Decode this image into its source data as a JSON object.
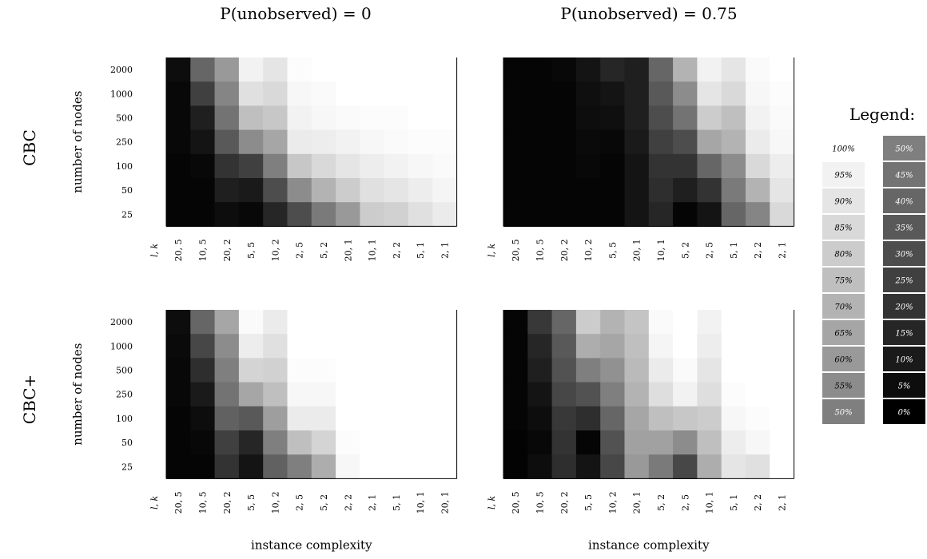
{
  "legend": {
    "title": "Legend:",
    "col1": [
      "100%",
      "95%",
      "90%",
      "85%",
      "80%",
      "75%",
      "70%",
      "65%",
      "60%",
      "55%",
      "50%"
    ],
    "col2": [
      "50%",
      "45%",
      "40%",
      "35%",
      "30%",
      "25%",
      "20%",
      "15%",
      "10%",
      "5%",
      "0%"
    ]
  },
  "chart_data": [
    {
      "type": "heatmap",
      "title": "P(unobserved) = 0",
      "row_label": "CBC",
      "ylabel": "number of nodes",
      "xlabel": "",
      "x_axis_name": "l, k",
      "x": [
        "20, 5",
        "10, 5",
        "20, 2",
        "5, 5",
        "10, 2",
        "2, 5",
        "5, 2",
        "20, 1",
        "10, 1",
        "2, 2",
        "5, 1",
        "2, 1"
      ],
      "y": [
        "2000",
        "1000",
        "500",
        "250",
        "100",
        "50",
        "25"
      ],
      "values": [
        [
          5,
          40,
          60,
          95,
          90,
          99,
          100,
          100,
          100,
          100,
          100,
          100
        ],
        [
          3,
          25,
          52,
          88,
          85,
          97,
          98,
          100,
          100,
          100,
          100,
          100
        ],
        [
          3,
          12,
          45,
          75,
          78,
          95,
          97,
          98,
          99,
          99,
          100,
          100
        ],
        [
          3,
          8,
          35,
          55,
          65,
          92,
          93,
          95,
          97,
          98,
          99,
          99
        ],
        [
          2,
          3,
          20,
          25,
          50,
          78,
          85,
          90,
          93,
          95,
          97,
          98
        ],
        [
          2,
          2,
          12,
          10,
          30,
          55,
          70,
          80,
          88,
          90,
          93,
          96
        ],
        [
          2,
          2,
          5,
          3,
          15,
          30,
          48,
          60,
          80,
          82,
          88,
          92
        ]
      ]
    },
    {
      "type": "heatmap",
      "title": "P(unobserved) = 0.75",
      "row_label": "CBC",
      "ylabel": "",
      "xlabel": "",
      "x_axis_name": "l, k",
      "x": [
        "20, 5",
        "10, 5",
        "20, 2",
        "10, 2",
        "5, 5",
        "20, 1",
        "10, 1",
        "5, 2",
        "2, 5",
        "5, 1",
        "2, 2",
        "2, 1"
      ],
      "y": [
        "2000",
        "1000",
        "500",
        "250",
        "100",
        "50",
        "25"
      ],
      "values": [
        [
          2,
          2,
          3,
          8,
          15,
          12,
          40,
          70,
          95,
          90,
          98,
          100
        ],
        [
          2,
          2,
          2,
          6,
          8,
          12,
          35,
          55,
          90,
          85,
          97,
          99
        ],
        [
          2,
          2,
          2,
          5,
          6,
          12,
          30,
          45,
          80,
          75,
          95,
          98
        ],
        [
          2,
          2,
          2,
          4,
          3,
          10,
          25,
          30,
          65,
          70,
          92,
          97
        ],
        [
          2,
          2,
          2,
          3,
          2,
          8,
          20,
          20,
          40,
          55,
          85,
          93
        ],
        [
          2,
          2,
          2,
          2,
          2,
          8,
          18,
          12,
          20,
          48,
          70,
          90
        ],
        [
          2,
          2,
          2,
          2,
          2,
          8,
          15,
          2,
          8,
          40,
          52,
          85
        ]
      ]
    },
    {
      "type": "heatmap",
      "title": "",
      "row_label": "CBC+",
      "ylabel": "number of nodes",
      "xlabel": "instance complexity",
      "x_axis_name": "l, k",
      "x": [
        "20, 5",
        "10, 5",
        "20, 2",
        "5, 5",
        "10, 2",
        "2, 5",
        "5, 2",
        "2, 2",
        "2, 1",
        "5, 1",
        "10, 1",
        "20, 1"
      ],
      "y": [
        "2000",
        "1000",
        "500",
        "250",
        "100",
        "50",
        "25"
      ],
      "values": [
        [
          5,
          40,
          65,
          98,
          92,
          100,
          100,
          100,
          100,
          100,
          100,
          100
        ],
        [
          4,
          28,
          55,
          93,
          88,
          100,
          100,
          100,
          100,
          100,
          100,
          100
        ],
        [
          3,
          18,
          50,
          83,
          82,
          99,
          99,
          100,
          100,
          100,
          100,
          100
        ],
        [
          3,
          10,
          45,
          65,
          75,
          97,
          97,
          100,
          100,
          100,
          100,
          100
        ],
        [
          2,
          5,
          38,
          35,
          62,
          92,
          92,
          100,
          100,
          100,
          100,
          100
        ],
        [
          2,
          3,
          25,
          15,
          50,
          75,
          83,
          99,
          100,
          100,
          100,
          100
        ],
        [
          2,
          2,
          20,
          8,
          38,
          50,
          68,
          97,
          100,
          100,
          100,
          100
        ]
      ]
    },
    {
      "type": "heatmap",
      "title": "",
      "row_label": "",
      "ylabel": "",
      "xlabel": "instance complexity",
      "x_axis_name": "l, k",
      "x": [
        "20, 5",
        "10, 5",
        "20, 2",
        "5, 5",
        "10, 2",
        "20, 1",
        "5, 2",
        "2, 5",
        "10, 1",
        "5, 1",
        "2, 2",
        "2, 1"
      ],
      "y": [
        "2000",
        "1000",
        "500",
        "250",
        "100",
        "50",
        "25"
      ],
      "values": [
        [
          2,
          22,
          40,
          80,
          70,
          77,
          98,
          100,
          95,
          100,
          100,
          100
        ],
        [
          2,
          15,
          35,
          68,
          65,
          75,
          96,
          100,
          93,
          100,
          100,
          100
        ],
        [
          2,
          12,
          32,
          50,
          57,
          73,
          92,
          98,
          90,
          100,
          100,
          100
        ],
        [
          2,
          8,
          28,
          32,
          50,
          70,
          87,
          95,
          87,
          99,
          100,
          100
        ],
        [
          2,
          5,
          22,
          18,
          40,
          65,
          75,
          78,
          80,
          97,
          99,
          100
        ],
        [
          1,
          3,
          20,
          2,
          32,
          63,
          63,
          55,
          75,
          93,
          97,
          100
        ],
        [
          1,
          5,
          18,
          8,
          28,
          60,
          48,
          28,
          68,
          90,
          88,
          100
        ]
      ]
    }
  ]
}
